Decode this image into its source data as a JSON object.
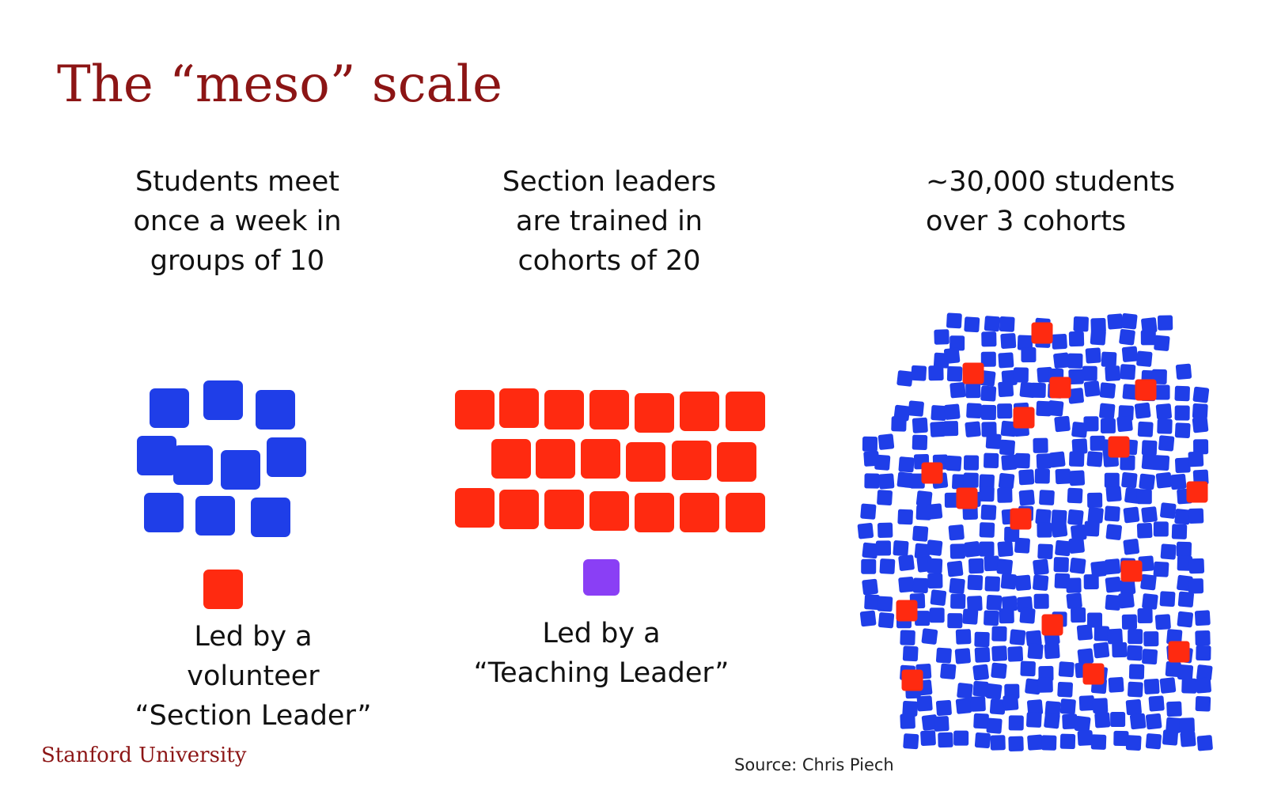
{
  "title": "The “meso” scale",
  "panels": [
    {
      "caption": "Students meet\nonce a week in\ngroups of 10",
      "led_caption": "Led by a\nvolunteer\n“Section Leader”"
    },
    {
      "caption": "Section leaders\nare trained in\ncohorts of 20",
      "led_caption": "Led by a\n“Teaching Leader”"
    },
    {
      "caption": "~30,000 students\nover 3 cohorts"
    }
  ],
  "footer": {
    "logo": "Stanford University",
    "source": "Source: Chris Piech"
  },
  "colors": {
    "title": "#8c1515",
    "student": "#1f3ee8",
    "section_leader": "#ff2a10",
    "teaching_leader": "#8a3ff5"
  }
}
